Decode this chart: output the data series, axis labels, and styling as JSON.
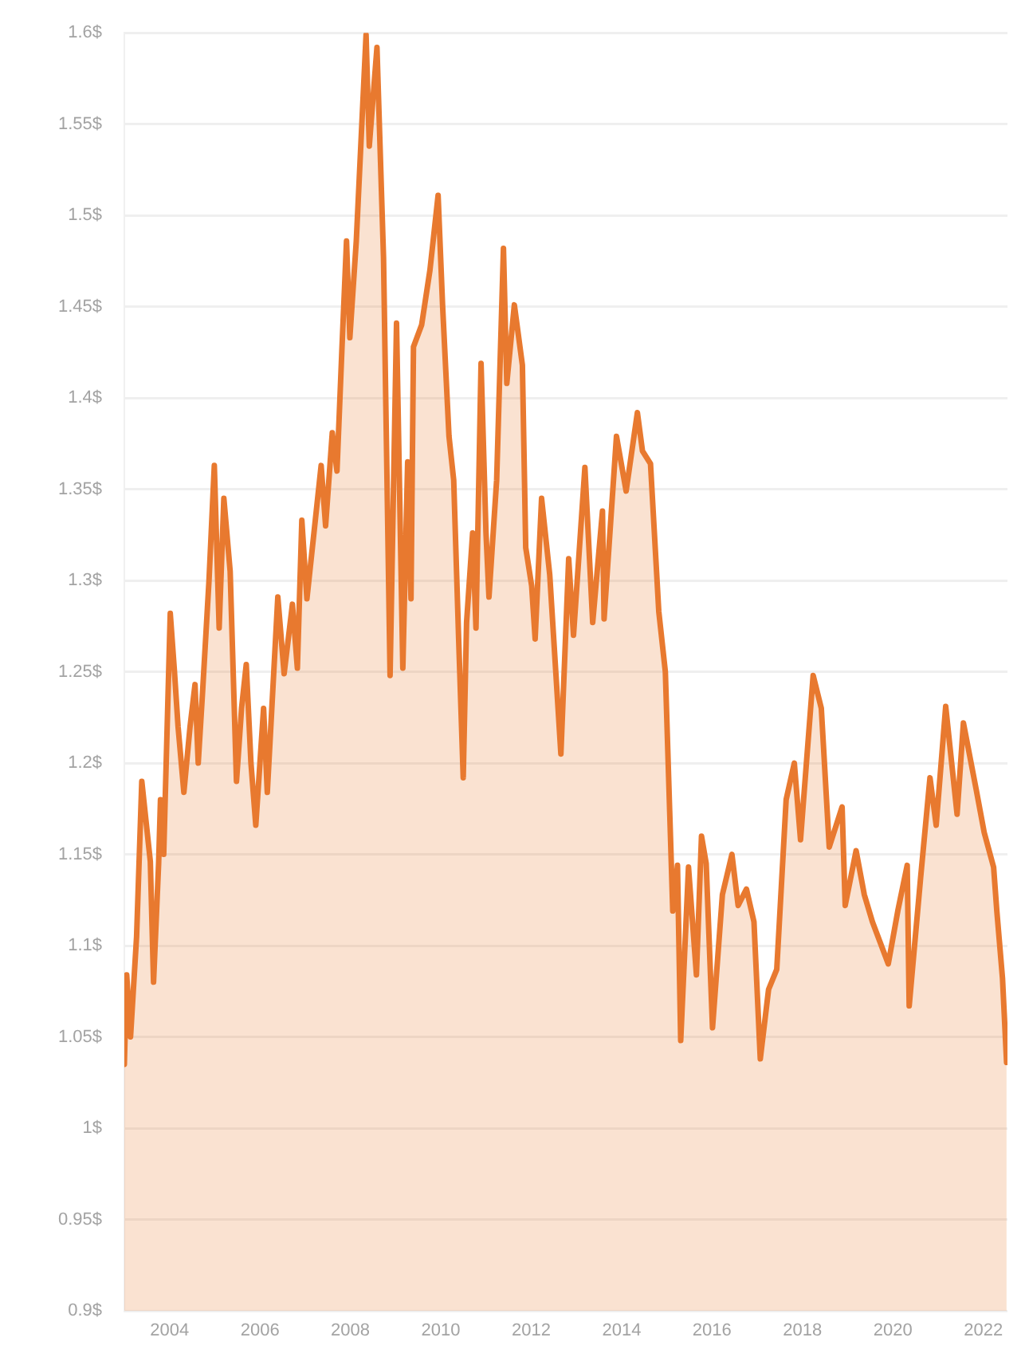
{
  "chart_data": {
    "type": "area",
    "x": [
      "2003-01-01",
      "2003-01-20",
      "2003-02-20",
      "2003-04-10",
      "2003-05-22",
      "2003-07-30",
      "2003-08-25",
      "2003-10-05",
      "2003-10-20",
      "2003-11-15",
      "2004-01-07",
      "2004-02-10",
      "2004-03-10",
      "2004-04-26",
      "2004-06-15",
      "2004-07-25",
      "2004-08-20",
      "2004-09-25",
      "2004-11-15",
      "2004-12-28",
      "2005-02-05",
      "2005-03-15",
      "2005-05-05",
      "2005-06-25",
      "2005-08-05",
      "2005-09-12",
      "2005-10-20",
      "2005-11-28",
      "2006-01-30",
      "2006-03-01",
      "2006-05-25",
      "2006-07-15",
      "2006-09-20",
      "2006-10-30",
      "2006-12-05",
      "2007-01-15",
      "2007-05-10",
      "2007-06-15",
      "2007-08-08",
      "2007-09-15",
      "2007-10-25",
      "2007-12-01",
      "2007-12-28",
      "2008-02-18",
      "2008-05-07",
      "2008-06-02",
      "2008-08-03",
      "2008-09-25",
      "2008-11-17",
      "2009-01-08",
      "2009-02-28",
      "2009-04-08",
      "2009-05-05",
      "2009-05-25",
      "2009-07-30",
      "2009-10-05",
      "2009-12-10",
      "2010-01-15",
      "2010-03-08",
      "2010-04-15",
      "2010-05-25",
      "2010-07-01",
      "2010-07-28",
      "2010-09-15",
      "2010-10-12",
      "2010-11-22",
      "2011-01-01",
      "2011-01-25",
      "2011-03-28",
      "2011-05-22",
      "2011-06-18",
      "2011-08-18",
      "2011-10-22",
      "2011-11-18",
      "2012-01-05",
      "2012-02-02",
      "2012-03-25",
      "2012-05-30",
      "2012-08-28",
      "2012-10-30",
      "2012-12-08",
      "2013-03-10",
      "2013-05-12",
      "2013-07-30",
      "2013-08-12",
      "2013-11-20",
      "2014-02-06",
      "2014-05-08",
      "2014-06-18",
      "2014-08-22",
      "2014-10-28",
      "2014-12-20",
      "2015-02-18",
      "2015-03-28",
      "2015-04-23",
      "2015-06-25",
      "2015-08-28",
      "2015-10-08",
      "2015-11-15",
      "2016-01-05",
      "2016-03-25",
      "2016-06-10",
      "2016-07-30",
      "2016-10-05",
      "2016-12-05",
      "2017-01-25",
      "2017-04-02",
      "2017-06-07",
      "2017-08-22",
      "2017-10-27",
      "2017-12-16",
      "2018-03-28",
      "2018-06-02",
      "2018-08-05",
      "2018-11-17",
      "2018-12-12",
      "2019-03-10",
      "2019-05-15",
      "2019-07-20",
      "2019-11-25",
      "2020-02-10",
      "2020-04-26",
      "2020-05-12",
      "2020-08-12",
      "2020-10-27",
      "2020-12-16",
      "2021-03-03",
      "2021-06-03",
      "2021-07-24",
      "2021-11-03",
      "2022-01-08",
      "2022-03-25",
      "2022-04-20",
      "2022-06-05",
      "2022-07-08"
    ],
    "series": [
      {
        "color": "#e8792f",
        "values": [
          1.035,
          1.084,
          1.05,
          1.105,
          1.19,
          1.146,
          1.08,
          1.145,
          1.18,
          1.15,
          1.282,
          1.25,
          1.22,
          1.184,
          1.22,
          1.243,
          1.2,
          1.24,
          1.3,
          1.363,
          1.274,
          1.345,
          1.305,
          1.19,
          1.23,
          1.254,
          1.2,
          1.166,
          1.23,
          1.184,
          1.291,
          1.249,
          1.287,
          1.252,
          1.333,
          1.29,
          1.363,
          1.33,
          1.381,
          1.36,
          1.427,
          1.486,
          1.433,
          1.486,
          1.599,
          1.538,
          1.592,
          1.477,
          1.248,
          1.441,
          1.252,
          1.365,
          1.29,
          1.428,
          1.44,
          1.47,
          1.511,
          1.451,
          1.379,
          1.355,
          1.268,
          1.192,
          1.277,
          1.326,
          1.274,
          1.419,
          1.326,
          1.291,
          1.355,
          1.482,
          1.408,
          1.451,
          1.418,
          1.318,
          1.297,
          1.268,
          1.345,
          1.303,
          1.205,
          1.312,
          1.27,
          1.362,
          1.277,
          1.338,
          1.279,
          1.379,
          1.349,
          1.392,
          1.371,
          1.364,
          1.283,
          1.25,
          1.119,
          1.144,
          1.048,
          1.143,
          1.084,
          1.16,
          1.145,
          1.055,
          1.128,
          1.15,
          1.122,
          1.131,
          1.113,
          1.038,
          1.076,
          1.087,
          1.18,
          1.2,
          1.158,
          1.248,
          1.23,
          1.154,
          1.176,
          1.122,
          1.152,
          1.128,
          1.113,
          1.09,
          1.119,
          1.144,
          1.067,
          1.137,
          1.192,
          1.166,
          1.231,
          1.172,
          1.222,
          1.186,
          1.162,
          1.143,
          1.119,
          1.082,
          1.036
        ]
      }
    ],
    "xlim": [
      "2003-01-01",
      "2022-07-15"
    ],
    "xticks": [
      "2004",
      "2006",
      "2008",
      "2010",
      "2012",
      "2014",
      "2016",
      "2018",
      "2020",
      "2022"
    ],
    "ylim": [
      0.9,
      1.6
    ],
    "yticks": [
      {
        "value": 0.9,
        "label": "0.9$"
      },
      {
        "value": 0.95,
        "label": "0.95$"
      },
      {
        "value": 1,
        "label": "1$"
      },
      {
        "value": 1.05,
        "label": "1.05$"
      },
      {
        "value": 1.1,
        "label": "1.1$"
      },
      {
        "value": 1.15,
        "label": "1.15$"
      },
      {
        "value": 1.2,
        "label": "1.2$"
      },
      {
        "value": 1.25,
        "label": "1.25$"
      },
      {
        "value": 1.3,
        "label": "1.3$"
      },
      {
        "value": 1.35,
        "label": "1.35$"
      },
      {
        "value": 1.4,
        "label": "1.4$"
      },
      {
        "value": 1.45,
        "label": "1.45$"
      },
      {
        "value": 1.5,
        "label": "1.5$"
      },
      {
        "value": 1.55,
        "label": "1.55$"
      },
      {
        "value": 1.6,
        "label": "1.6$"
      }
    ],
    "grid": "y",
    "legend": false,
    "marker": "none"
  }
}
